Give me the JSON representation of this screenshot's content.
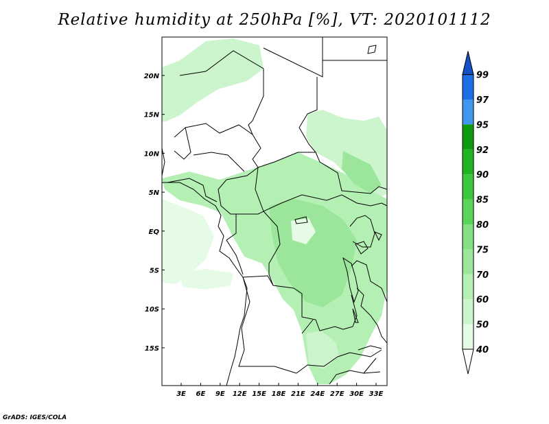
{
  "title": "Relative humidity at 250hPa [%], VT: 2020101112",
  "credit": "GrADS: IGES/COLA",
  "map": {
    "lat_labels": [
      "20N",
      "15N",
      "10N",
      "5N",
      "EQ",
      "5S",
      "10S",
      "15S"
    ],
    "lon_labels": [
      "3E",
      "6E",
      "9E",
      "12E",
      "15E",
      "18E",
      "21E",
      "24E",
      "27E",
      "30E",
      "33E"
    ]
  },
  "colorbar": {
    "levels": [
      "40",
      "50",
      "60",
      "70",
      "75",
      "80",
      "85",
      "90",
      "92",
      "95",
      "97",
      "99"
    ],
    "colors": {
      "c40": "#ffffff",
      "c50": "#e6fbe6",
      "c60": "#cdf5cd",
      "c70": "#b4f0b4",
      "c75": "#9be69b",
      "c80": "#82e082",
      "c85": "#5ad55a",
      "c90": "#3cc83c",
      "c92": "#23b423",
      "c95": "#0f9b0f",
      "c97": "#4196f0",
      "c99": "#1e6ee6",
      "ctop": "#1450c8"
    }
  }
}
